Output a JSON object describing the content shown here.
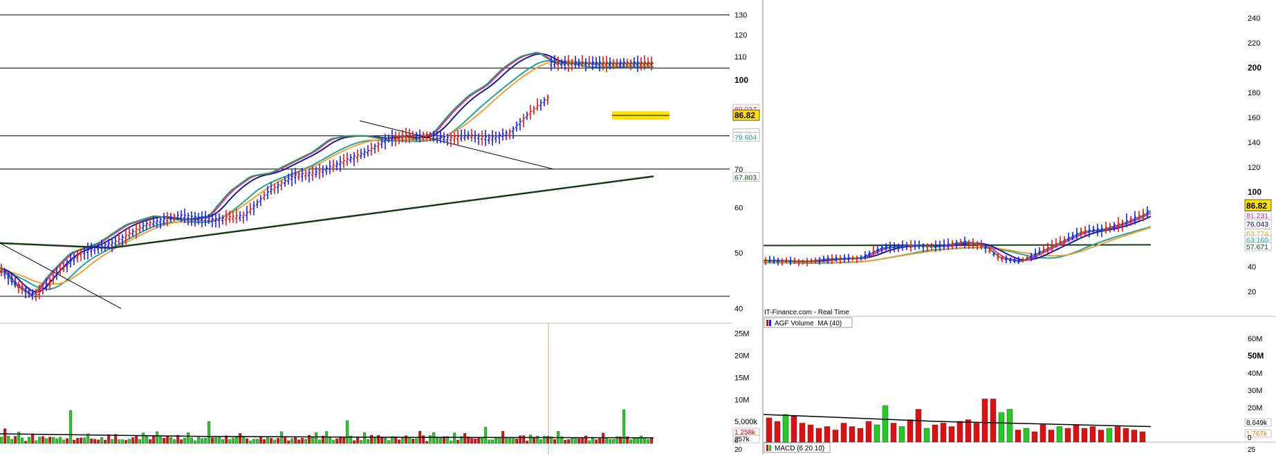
{
  "left_panel": {
    "price_axis": {
      "ticks": [
        "130",
        "120",
        "110",
        "100",
        "70",
        "60",
        "50",
        "40"
      ],
      "tick_values": [
        130,
        120,
        110,
        100,
        70,
        60,
        50,
        40
      ],
      "bold_ticks": [
        100
      ],
      "ylim": [
        38,
        135
      ],
      "log": true
    },
    "price_labels": [
      {
        "text": "89.037",
        "color": "#d020c0",
        "value": 89.037,
        "style": "outline"
      },
      {
        "text": "86.82",
        "color": "#000000",
        "value": 86.82,
        "style": "highlight"
      },
      {
        "text": "80.714",
        "color": "#f0a020",
        "value": 80.714,
        "style": "outline"
      },
      {
        "text": "79.604",
        "color": "#20a0a0",
        "value": 79.604,
        "style": "outline"
      },
      {
        "text": "67.803",
        "color": "#1a4a1a",
        "value": 67.803,
        "style": "outline"
      }
    ],
    "volume_axis": {
      "ticks": [
        "25M",
        "20M",
        "15M",
        "10M",
        "5,000k"
      ],
      "tick_values": [
        25,
        20,
        15,
        10,
        5
      ],
      "ylim": [
        0,
        27
      ]
    },
    "volume_labels": [
      {
        "text": "1.258k",
        "color": "#cc0000"
      },
      {
        "text": "257k",
        "color": "#000000"
      }
    ],
    "bottom_label": "20",
    "zero_label": "0"
  },
  "right_panel": {
    "price_axis": {
      "ticks": [
        "240",
        "220",
        "200",
        "180",
        "160",
        "140",
        "120",
        "100",
        "40",
        "20"
      ],
      "tick_values": [
        240,
        220,
        200,
        180,
        160,
        140,
        120,
        100,
        40,
        20
      ],
      "bold_ticks": [
        200,
        100
      ],
      "ylim": [
        0,
        250
      ],
      "log": false
    },
    "price_labels": [
      {
        "text": "86.82",
        "color": "#000000",
        "value": 86.82,
        "style": "highlight"
      },
      {
        "text": "81.231",
        "color": "#d020c0",
        "value": 81.231,
        "style": "outline"
      },
      {
        "text": "76.043",
        "color": "#000080",
        "value": 76.043,
        "style": "outline"
      },
      {
        "text": "63.774",
        "color": "#f0a020",
        "value": 63.774,
        "style": "outline"
      },
      {
        "text": "63.160",
        "color": "#20a0a0",
        "value": 63.16,
        "style": "outline"
      },
      {
        "text": "57.671",
        "color": "#1a4a1a",
        "value": 57.671,
        "style": "outline"
      }
    ],
    "volume_axis": {
      "ticks": [
        "60M",
        "50M",
        "40M",
        "30M",
        "20M"
      ],
      "tick_values": [
        60,
        50,
        40,
        30,
        20
      ],
      "bold_ticks": [
        50
      ],
      "ylim": [
        0,
        66
      ]
    },
    "volume_labels": [
      {
        "text": "8.649k",
        "color": "#000000"
      },
      {
        "text": "1.767k",
        "color": "#cc8800"
      }
    ],
    "zero_label": "0",
    "bottom_label": "25",
    "source_text": "IT-Finance.com - Real Time",
    "volume_legend": "AGF Volume  MA (40)",
    "macd_legend": "MACD (6 20 10)"
  },
  "colors": {
    "up_bar": "#1a1aff",
    "down_bar": "#ee1111",
    "vol_up": "#22cc22",
    "vol_down": "#dd1111",
    "ma_green": "#22a050",
    "ma_magenta": "#ee20c8",
    "ma_navy": "#1a1a8c",
    "ma_orange": "#f0a030",
    "ma_teal": "#20a0a0",
    "ma_darkgreen": "#143c14",
    "highlight": "#ffe000"
  },
  "chart_data": [
    {
      "type": "line",
      "panel": "left-price",
      "series": [
        {
          "x": [
            0,
            20,
            45,
            70,
            100,
            140,
            180,
            220,
            260,
            300,
            330,
            360,
            390,
            420,
            450,
            475,
            500,
            525,
            550,
            575,
            600,
            625,
            650,
            675,
            700,
            725,
            750,
            775,
            800
          ],
          "values": [
            47,
            44,
            42,
            46,
            50,
            52,
            56,
            58,
            57,
            58,
            64,
            68,
            69,
            72,
            75,
            79,
            80,
            80,
            79,
            80,
            79,
            81,
            88,
            94,
            98,
            105,
            110,
            112,
            107
          ]
        },
        {
          "name": "",
          "x": [
            0,
            100,
            200,
            300,
            400,
            500,
            600,
            700,
            800
          ],
          "values": [
            51,
            51.5,
            53,
            55,
            57.5,
            60,
            62.5,
            65,
            68
          ]
        }
      ]
    },
    {
      "type": "bar",
      "panel": "left-volume",
      "values": [
        1.2,
        2.6,
        1.5,
        0.8,
        1.4,
        2.0,
        1.1,
        0.9,
        1.3,
        1.6,
        1.0,
        1.8,
        1.2,
        1.5,
        2.1,
        1.1,
        0.9,
        1.4,
        1.2,
        1.6,
        6.0,
        1.3,
        1.1,
        1.5,
        1.0,
        2.2,
        1.2,
        1.4,
        1.1,
        1.7,
        1.3,
        1.5,
        1.0,
        1.6,
        1.2,
        1.3,
        1.1,
        1.4,
        1.2,
        1.3
      ]
    },
    {
      "type": "bar",
      "panel": "right-volume",
      "values": [
        14,
        12,
        16,
        15,
        11,
        10,
        8,
        9,
        7,
        11,
        9,
        8,
        12,
        10,
        21,
        11,
        9,
        13,
        19,
        8,
        10,
        11,
        9,
        12,
        13,
        11,
        25,
        25,
        17,
        19,
        7,
        8,
        6,
        10,
        7,
        9,
        8,
        10,
        8,
        9,
        7,
        8,
        9,
        8,
        7,
        6
      ]
    }
  ]
}
